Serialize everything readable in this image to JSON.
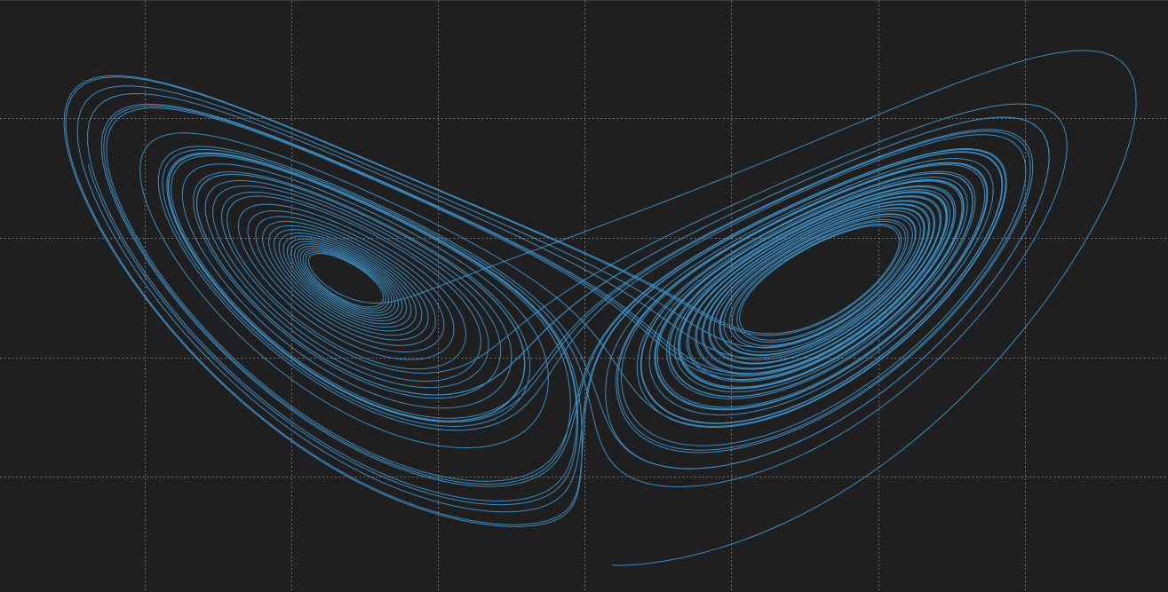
{
  "canvas": {
    "background_color": "#1f1f1f",
    "top_border_color": "#3b3b3b"
  },
  "chart_data": {
    "type": "line",
    "title": "",
    "xlabel": "",
    "ylabel": "",
    "grid": true,
    "grid_style": "dotted",
    "grid_color": "#bdbdbd",
    "x_grid_lines": 8,
    "y_grid_lines": 4,
    "series": [
      {
        "color": "#3f97cf",
        "kind": "lorenz-attractor",
        "projection": [
          "x",
          "z"
        ],
        "parameters": {
          "sigma": 10,
          "rho": 28,
          "beta": 2.6667
        },
        "initial_state": [
          1,
          1,
          1
        ],
        "time_step": 0.005,
        "steps": 12000
      }
    ],
    "xlim": [
      -20,
      20
    ],
    "ylim": [
      0,
      50
    ]
  }
}
